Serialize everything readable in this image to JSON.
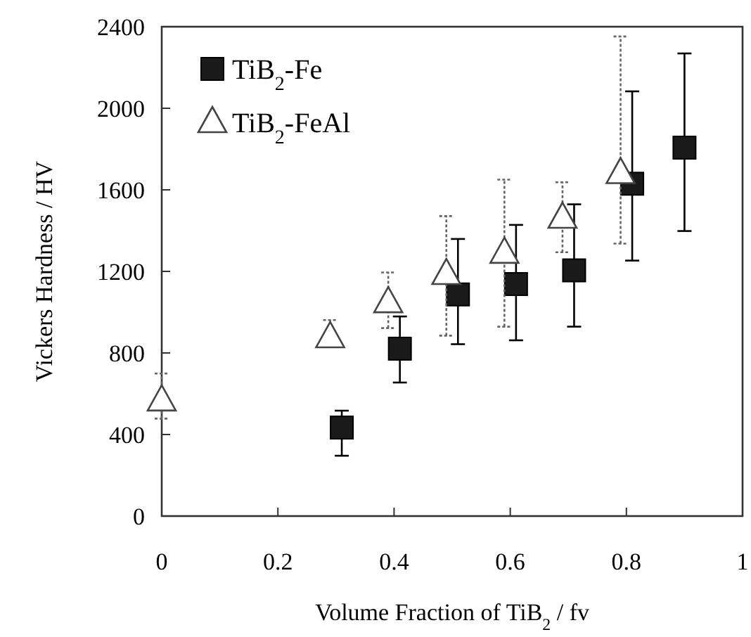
{
  "chart_data": {
    "type": "scatter",
    "xlabel": "Volume Fraction of TiB$_{2}$ / fv",
    "ylabel": "Vickers Hardness / HV",
    "xlim": [
      0,
      1
    ],
    "xticks": [
      0,
      0.2,
      0.4,
      0.6,
      0.8,
      1
    ],
    "ylim": [
      0,
      2400
    ],
    "yticks": [
      0,
      400,
      800,
      1200,
      1600,
      2000,
      2400
    ],
    "grid": false,
    "legend": "top left",
    "series": [
      {
        "name": "TiB$_{2}$-Fe",
        "color": "#1a1a1a",
        "marker": "square",
        "x": [
          0.31,
          0.41,
          0.51,
          0.61,
          0.71,
          0.81,
          0.9
        ],
        "values": [
          434,
          821,
          1087,
          1138,
          1205,
          1630,
          1807
        ],
        "errors": [
          [
            296,
            517
          ],
          [
            655,
            979
          ],
          [
            843,
            1359
          ],
          [
            862,
            1428
          ],
          [
            929,
            1529
          ],
          [
            1253,
            2083
          ],
          [
            1398,
            2269
          ]
        ]
      },
      {
        "name": "TiB$_{2}$-FeAl",
        "color": "#444444",
        "marker": "triangle",
        "x": [
          0,
          0.29,
          0.39,
          0.49,
          0.59,
          0.69,
          0.79
        ],
        "values": [
          566,
          876,
          1048,
          1186,
          1290,
          1462,
          1681
        ],
        "errors": [
          [
            478,
            699
          ],
          [
            834,
            961
          ],
          [
            922,
            1195
          ],
          [
            885,
            1471
          ],
          [
            929,
            1650
          ],
          [
            1294,
            1637
          ],
          [
            1336,
            2352
          ]
        ]
      }
    ]
  }
}
